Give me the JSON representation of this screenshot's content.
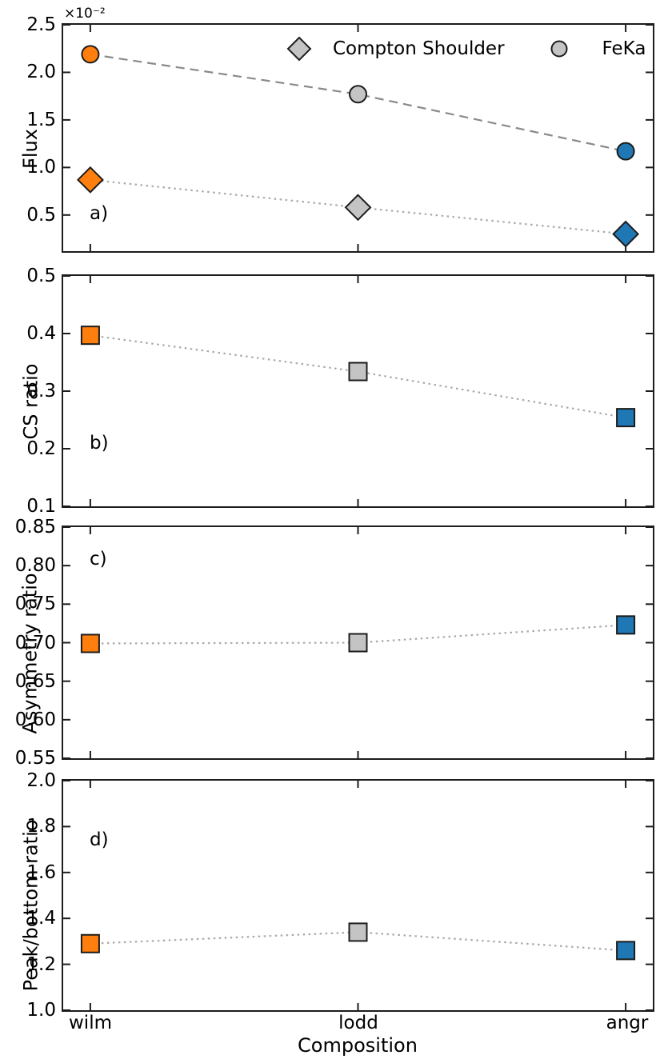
{
  "figure": {
    "xlabel": "Composition",
    "categories": [
      "wilm",
      "lodd",
      "angr"
    ],
    "offset_text": "×10⁻²",
    "legend": {
      "items": [
        {
          "label": "Compton Shoulder",
          "marker": "diamond-icon"
        },
        {
          "label": "FeKa",
          "marker": "circle-icon"
        }
      ]
    },
    "colors": {
      "point_colors": [
        "#ff7f0e",
        "#c4c4c4",
        "#1f77b4"
      ],
      "legend_marker_fill": "#c4c4c4",
      "marker_edge": "#1c1c1c",
      "dashed_line": "#8a8a8a",
      "dotted_line": "#a9a9a9",
      "axis": "#1c1c1c",
      "background": "#ffffff"
    }
  },
  "chart_data": [
    {
      "panel_label": "a)",
      "type": "line",
      "ylabel": "Flux",
      "y_multiplier": "1e-2",
      "categories": [
        "wilm",
        "lodd",
        "angr"
      ],
      "series": [
        {
          "name": "FeKa",
          "marker": "circle",
          "linestyle": "dashed",
          "values": [
            2.19,
            1.77,
            1.17
          ]
        },
        {
          "name": "Compton Shoulder",
          "marker": "diamond",
          "linestyle": "dotted",
          "values": [
            0.87,
            0.58,
            0.3
          ]
        }
      ],
      "yticks": [
        0.5,
        1.0,
        1.5,
        2.0,
        2.5
      ],
      "ytick_decimals": 1,
      "ylim": [
        0.12,
        2.5
      ],
      "legend_position": "upper center",
      "grid": false
    },
    {
      "panel_label": "b)",
      "type": "line",
      "ylabel": "CS ratio",
      "categories": [
        "wilm",
        "lodd",
        "angr"
      ],
      "series": [
        {
          "name": "CS ratio",
          "marker": "square",
          "linestyle": "dotted",
          "values": [
            0.397,
            0.334,
            0.254
          ]
        }
      ],
      "yticks": [
        0.1,
        0.2,
        0.3,
        0.4,
        0.5
      ],
      "ytick_decimals": 1,
      "ylim": [
        0.1,
        0.5
      ],
      "grid": false
    },
    {
      "panel_label": "c)",
      "type": "line",
      "ylabel": "Asymmetry ratio",
      "categories": [
        "wilm",
        "lodd",
        "angr"
      ],
      "series": [
        {
          "name": "Asymmetry ratio",
          "marker": "square",
          "linestyle": "dotted",
          "values": [
            0.699,
            0.7,
            0.723
          ]
        }
      ],
      "yticks": [
        0.55,
        0.6,
        0.65,
        0.7,
        0.75,
        0.8,
        0.85
      ],
      "ytick_decimals": 2,
      "ylim": [
        0.55,
        0.85
      ],
      "grid": false
    },
    {
      "panel_label": "d)",
      "type": "line",
      "ylabel": "Peak/bottom ratio",
      "categories": [
        "wilm",
        "lodd",
        "angr"
      ],
      "series": [
        {
          "name": "Peak/bottom ratio",
          "marker": "square",
          "linestyle": "dotted",
          "values": [
            1.29,
            1.34,
            1.26
          ]
        }
      ],
      "yticks": [
        1.0,
        1.2,
        1.4,
        1.6,
        1.8,
        2.0
      ],
      "ytick_decimals": 1,
      "ylim": [
        1.0,
        2.0
      ],
      "grid": false
    }
  ]
}
